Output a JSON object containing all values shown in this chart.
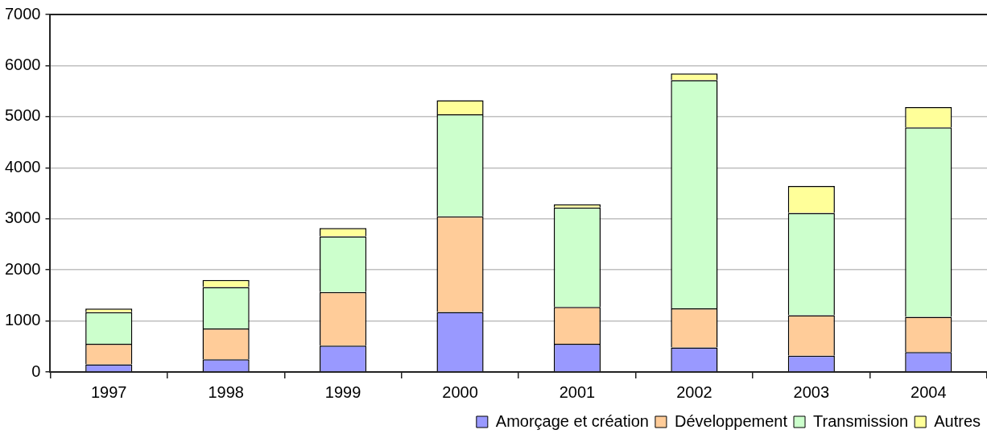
{
  "chart_data": {
    "type": "bar",
    "stacked": true,
    "categories": [
      "1997",
      "1998",
      "1999",
      "2000",
      "2001",
      "2002",
      "2003",
      "2004"
    ],
    "series": [
      {
        "name": "Amorçage et création",
        "color": "#9999ff",
        "values": [
          150,
          250,
          515,
          1175,
          550,
          480,
          320,
          390
        ]
      },
      {
        "name": "Développement",
        "color": "#ffcc99",
        "values": [
          400,
          600,
          1050,
          1870,
          725,
          765,
          790,
          690
        ]
      },
      {
        "name": "Transmission",
        "color": "#ccffcc",
        "values": [
          620,
          815,
          1090,
          2000,
          1945,
          4470,
          2005,
          3710
        ]
      },
      {
        "name": "Autres",
        "color": "#ffff99",
        "values": [
          70,
          135,
          165,
          275,
          65,
          130,
          525,
          395
        ]
      }
    ],
    "ylim": [
      0,
      7000
    ],
    "yticks": [
      0,
      1000,
      2000,
      3000,
      4000,
      5000,
      6000,
      7000
    ],
    "grid": "y",
    "legend": "bottom"
  }
}
